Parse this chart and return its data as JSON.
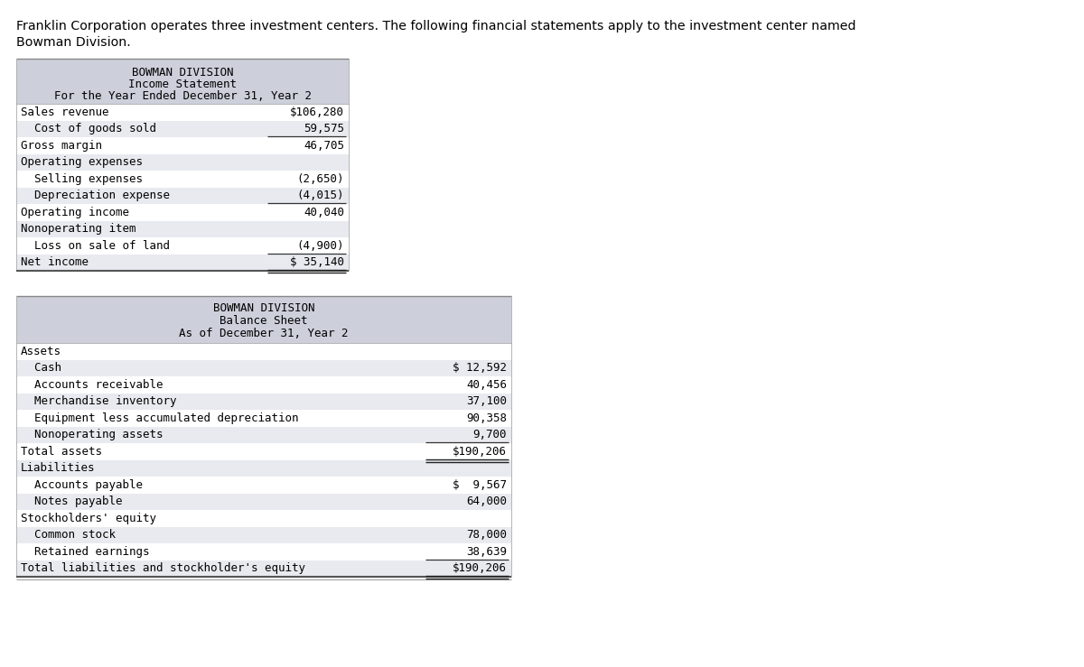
{
  "intro_line1": "Franklin Corporation operates three investment centers. The following financial statements apply to the investment center named",
  "intro_line2": "Bowman Division.",
  "bg_color": "#ffffff",
  "table_header_bg": "#cdd0db",
  "table_row_bg1": "#ffffff",
  "table_row_bg2": "#e8eaef",
  "income_statement": {
    "title1": "BOWMAN DIVISION",
    "title2": "Income Statement",
    "title3": "For the Year Ended December 31, Year 2",
    "rows": [
      {
        "label": "Sales revenue",
        "value": "$106,280",
        "underline": false,
        "double_underline": false
      },
      {
        "label": "  Cost of goods sold",
        "value": "59,575",
        "underline": true,
        "double_underline": false
      },
      {
        "label": "Gross margin",
        "value": "46,705",
        "underline": false,
        "double_underline": false
      },
      {
        "label": "Operating expenses",
        "value": "",
        "underline": false,
        "double_underline": false
      },
      {
        "label": "  Selling expenses",
        "value": "(2,650)",
        "underline": false,
        "double_underline": false
      },
      {
        "label": "  Depreciation expense",
        "value": "(4,015)",
        "underline": true,
        "double_underline": false
      },
      {
        "label": "Operating income",
        "value": "40,040",
        "underline": false,
        "double_underline": false
      },
      {
        "label": "Nonoperating item",
        "value": "",
        "underline": false,
        "double_underline": false
      },
      {
        "label": "  Loss on sale of land",
        "value": "(4,900)",
        "underline": true,
        "double_underline": false
      },
      {
        "label": "Net income",
        "value": "$ 35,140",
        "underline": false,
        "double_underline": true
      }
    ]
  },
  "balance_sheet": {
    "title1": "BOWMAN DIVISION",
    "title2": "Balance Sheet",
    "title3": "As of December 31, Year 2",
    "rows": [
      {
        "label": "Assets",
        "value": "",
        "underline": false,
        "double_underline": false
      },
      {
        "label": "  Cash",
        "value": "$ 12,592",
        "underline": false,
        "double_underline": false
      },
      {
        "label": "  Accounts receivable",
        "value": "40,456",
        "underline": false,
        "double_underline": false
      },
      {
        "label": "  Merchandise inventory",
        "value": "37,100",
        "underline": false,
        "double_underline": false
      },
      {
        "label": "  Equipment less accumulated depreciation",
        "value": "90,358",
        "underline": false,
        "double_underline": false
      },
      {
        "label": "  Nonoperating assets",
        "value": "9,700",
        "underline": true,
        "double_underline": false
      },
      {
        "label": "Total assets",
        "value": "$190,206",
        "underline": false,
        "double_underline": true
      },
      {
        "label": "Liabilities",
        "value": "",
        "underline": false,
        "double_underline": false
      },
      {
        "label": "  Accounts payable",
        "value": "$  9,567",
        "underline": false,
        "double_underline": false
      },
      {
        "label": "  Notes payable",
        "value": "64,000",
        "underline": false,
        "double_underline": false
      },
      {
        "label": "Stockholders' equity",
        "value": "",
        "underline": false,
        "double_underline": false
      },
      {
        "label": "  Common stock",
        "value": "78,000",
        "underline": false,
        "double_underline": false
      },
      {
        "label": "  Retained earnings",
        "value": "38,639",
        "underline": true,
        "double_underline": false
      },
      {
        "label": "Total liabilities and stockholder's equity",
        "value": "$190,206",
        "underline": false,
        "double_underline": true
      }
    ]
  }
}
